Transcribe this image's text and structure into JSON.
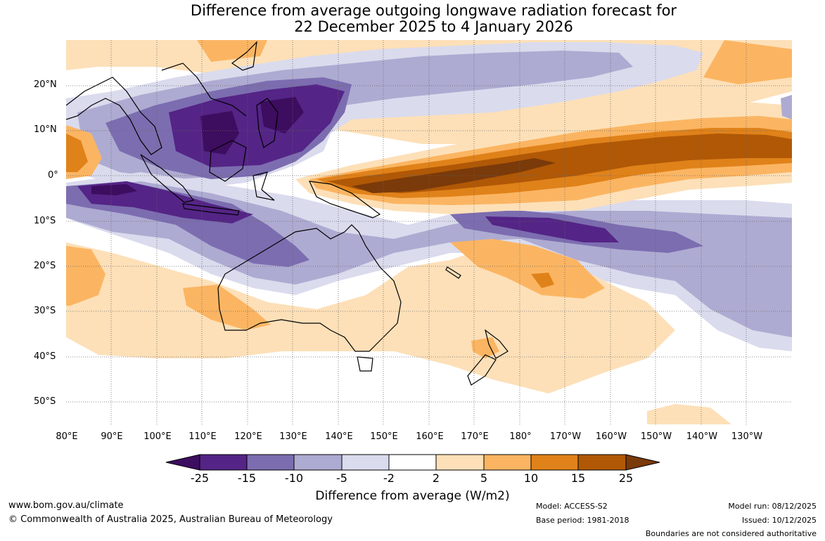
{
  "title": {
    "line1": "Difference from average outgoing longwave radiation forecast for",
    "line2": "22 December 2025 to 4 January 2026"
  },
  "map": {
    "lat_labels": [
      "20°N",
      "10°N",
      "0°",
      "10°S",
      "20°S",
      "30°S",
      "40°S",
      "50°S"
    ],
    "lon_labels": [
      "80°E",
      "90°E",
      "100°E",
      "110°E",
      "120°E",
      "130°E",
      "140°E",
      "150°E",
      "160°E",
      "170°E",
      "180°",
      "170°W",
      "160°W",
      "150°W",
      "140°W",
      "130°W"
    ]
  },
  "colorbar": {
    "tick_labels": [
      "-25",
      "-15",
      "-10",
      "-5",
      "-2",
      "2",
      "5",
      "10",
      "15",
      "25"
    ],
    "colors": [
      "#3d0d5f",
      "#542486",
      "#7c6db0",
      "#aeabd2",
      "#dadbed",
      "#ffffff",
      "#fde0b8",
      "#fbb562",
      "#e0821a",
      "#b05806",
      "#7a3a0a"
    ],
    "label": "Difference from average (W/m2)"
  },
  "footer": {
    "website": "www.bom.gov.au/climate",
    "copyright": "© Commonwealth of Australia 2025, Australian Bureau of Meteorology",
    "model": "Model: ACCESS-S2",
    "base_period": "Base period: 1981-2018",
    "model_run": "Model run: 08/12/2025",
    "issued": "Issued: 10/12/2025",
    "boundaries": "Boundaries are not considered authoritative"
  }
}
